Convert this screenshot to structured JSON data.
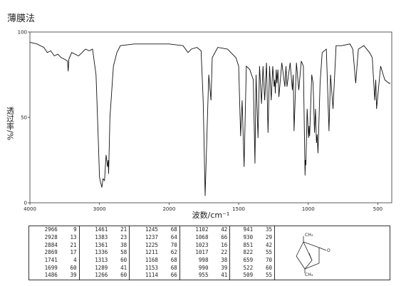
{
  "chart_data": {
    "type": "line",
    "title": "薄膜法",
    "x_label": "波数/cm⁻¹",
    "y_label": "透过率/%",
    "x": [
      4000,
      3900,
      3800,
      3750,
      3700,
      3650,
      3600,
      3550,
      3500,
      3460,
      3450,
      3440,
      3400,
      3300,
      3200,
      3150,
      3100,
      3050,
      3020,
      3000,
      2985,
      2966,
      2950,
      2928,
      2905,
      2884,
      2875,
      2869,
      2850,
      2800,
      2750,
      2700,
      2500,
      2300,
      2100,
      2000,
      1900,
      1864,
      1840,
      1800,
      1770,
      1755,
      1741,
      1728,
      1715,
      1699,
      1690,
      1650,
      1580,
      1520,
      1500,
      1486,
      1475,
      1461,
      1445,
      1420,
      1395,
      1383,
      1375,
      1361,
      1350,
      1336,
      1325,
      1313,
      1300,
      1289,
      1278,
      1266,
      1255,
      1245,
      1240,
      1237,
      1230,
      1225,
      1218,
      1211,
      1190,
      1168,
      1160,
      1153,
      1130,
      1114,
      1108,
      1102,
      1085,
      1068,
      1050,
      1035,
      1023,
      1020,
      1017,
      1008,
      998,
      994,
      990,
      975,
      965,
      955,
      948,
      941,
      936,
      930,
      915,
      900,
      870,
      851,
      840,
      822,
      800,
      760,
      700,
      680,
      659,
      640,
      600,
      560,
      540,
      522,
      515,
      509,
      480,
      450,
      420,
      410
    ],
    "values": [
      94,
      93,
      91,
      88,
      89,
      86,
      87,
      85,
      84,
      83,
      77,
      84,
      88,
      86,
      90,
      89,
      90,
      75,
      40,
      15,
      12,
      9,
      14,
      13,
      28,
      21,
      25,
      17,
      50,
      80,
      88,
      92,
      93,
      93,
      93,
      93,
      92,
      88,
      90,
      91,
      89,
      60,
      4,
      40,
      75,
      60,
      85,
      91,
      90,
      85,
      80,
      39,
      60,
      21,
      80,
      78,
      72,
      23,
      75,
      38,
      80,
      58,
      80,
      60,
      82,
      41,
      80,
      60,
      80,
      68,
      72,
      64,
      78,
      70,
      78,
      62,
      82,
      68,
      80,
      68,
      82,
      66,
      75,
      42,
      82,
      66,
      83,
      80,
      16,
      25,
      22,
      55,
      38,
      45,
      39,
      75,
      70,
      41,
      55,
      35,
      40,
      29,
      70,
      88,
      90,
      42,
      75,
      55,
      92,
      92,
      93,
      90,
      70,
      90,
      92,
      88,
      85,
      60,
      72,
      55,
      80,
      72,
      70,
      70
    ],
    "color": "#111111",
    "xlim": [
      4000,
      400
    ],
    "xticks": [
      4000,
      3000,
      2000,
      1500,
      1000,
      500
    ],
    "ylim": [
      0,
      100
    ],
    "yticks": [
      0,
      50,
      100
    ],
    "grid": false
  },
  "table": {
    "rows": [
      [
        2966,
        9,
        1461,
        21,
        1245,
        68,
        1102,
        42,
        941,
        35
      ],
      [
        2928,
        13,
        1383,
        23,
        1237,
        64,
        1068,
        66,
        930,
        29
      ],
      [
        2884,
        21,
        1361,
        38,
        1225,
        70,
        1023,
        16,
        851,
        42
      ],
      [
        2869,
        17,
        1336,
        58,
        1211,
        62,
        1017,
        22,
        822,
        55
      ],
      [
        1741,
        4,
        1313,
        60,
        1168,
        68,
        998,
        38,
        659,
        70
      ],
      [
        1699,
        60,
        1289,
        41,
        1153,
        68,
        990,
        39,
        522,
        60
      ],
      [
        1486,
        39,
        1266,
        60,
        1114,
        66,
        955,
        41,
        509,
        55
      ]
    ]
  },
  "structure": {
    "labels": [
      "CH₃",
      "O",
      "CH₃"
    ]
  }
}
